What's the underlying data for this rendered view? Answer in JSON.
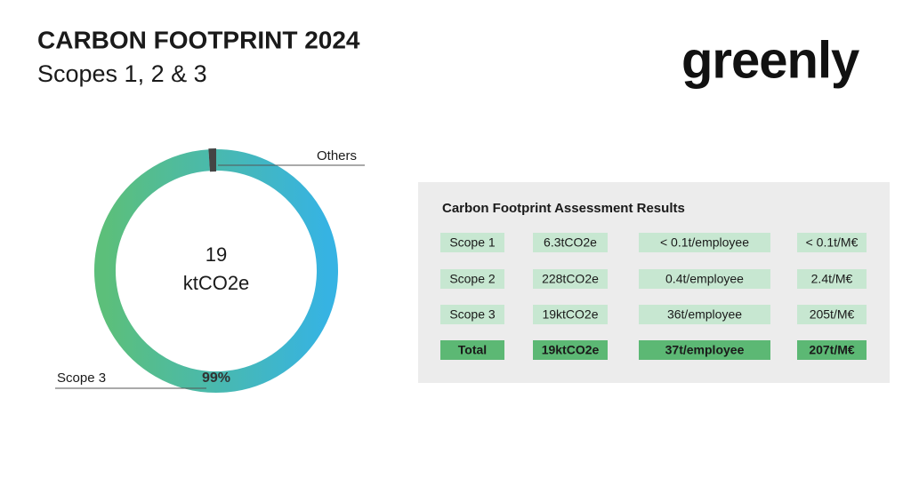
{
  "header": {
    "title": "CARBON FOOTPRINT 2024",
    "subtitle": "Scopes 1, 2 & 3"
  },
  "logo": "greenly",
  "donut": {
    "center_value": "19",
    "center_unit": "ktCO2e",
    "categories": [
      "Scope 3",
      "Others"
    ],
    "values": [
      99,
      1
    ],
    "value_labels": [
      "99%",
      null
    ]
  },
  "table": {
    "title": "Carbon Footprint Assessment Results",
    "rows": [
      [
        "Scope 1",
        "6.3tCO2e",
        "< 0.1t/employee",
        "< 0.1t/M€"
      ],
      [
        "Scope 2",
        "228tCO2e",
        "0.4t/employee",
        "2.4t/M€"
      ],
      [
        "Scope 3",
        "19ktCO2e",
        "36t/employee",
        "205t/M€"
      ],
      [
        "Total",
        "19ktCO2e",
        "37t/employee",
        "207t/M€"
      ]
    ]
  }
}
